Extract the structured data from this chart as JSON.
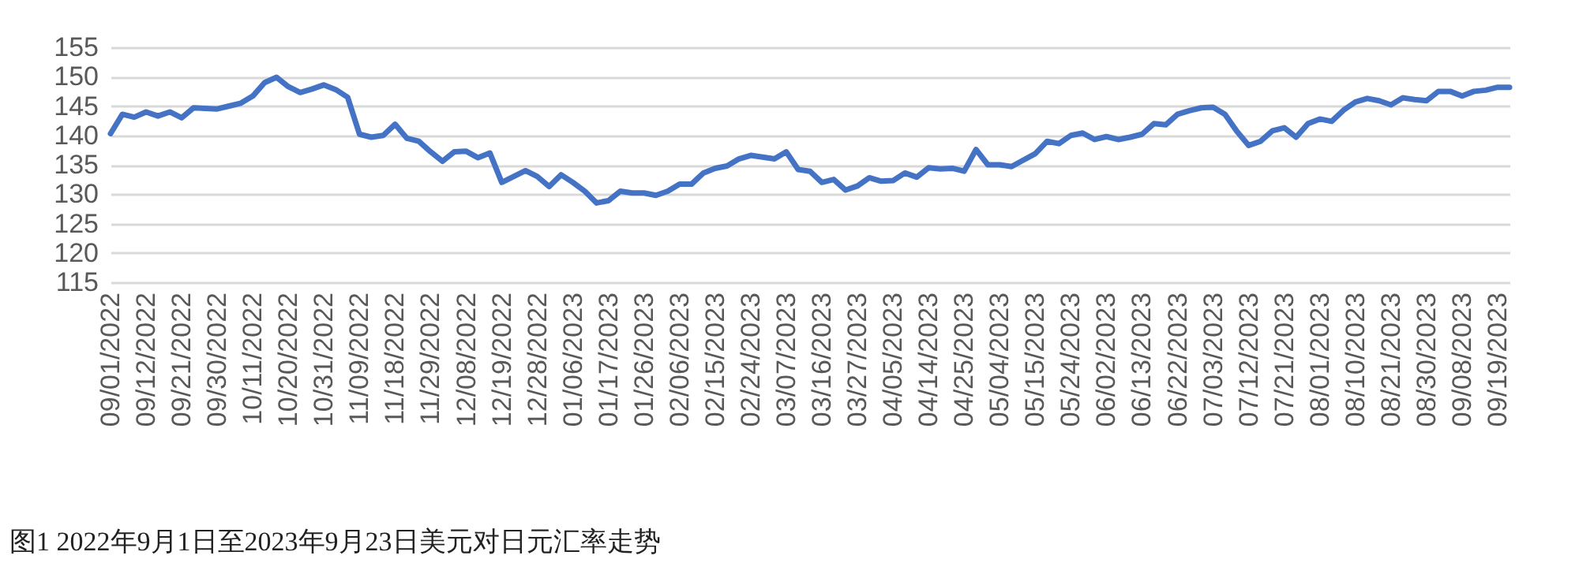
{
  "chart_data": {
    "type": "line",
    "categories": [
      "09/01/2022",
      null,
      null,
      "09/12/2022",
      null,
      null,
      "09/21/2022",
      null,
      null,
      "09/30/2022",
      null,
      null,
      "10/11/2022",
      null,
      null,
      "10/20/2022",
      null,
      null,
      "10/31/2022",
      null,
      null,
      "11/09/2022",
      null,
      null,
      "11/18/2022",
      null,
      null,
      "11/29/2022",
      null,
      null,
      "12/08/2022",
      null,
      null,
      "12/19/2022",
      null,
      null,
      "12/28/2022",
      null,
      null,
      "01/06/2023",
      null,
      null,
      "01/17/2023",
      null,
      null,
      "01/26/2023",
      null,
      null,
      "02/06/2023",
      null,
      null,
      "02/15/2023",
      null,
      null,
      "02/24/2023",
      null,
      null,
      "03/07/2023",
      null,
      null,
      "03/16/2023",
      null,
      null,
      "03/27/2023",
      null,
      null,
      "04/05/2023",
      null,
      null,
      "04/14/2023",
      null,
      null,
      "04/25/2023",
      null,
      null,
      "05/04/2023",
      null,
      null,
      "05/15/2023",
      null,
      null,
      "05/24/2023",
      null,
      null,
      "06/02/2023",
      null,
      null,
      "06/13/2023",
      null,
      null,
      "06/22/2023",
      null,
      null,
      "07/03/2023",
      null,
      null,
      "07/12/2023",
      null,
      null,
      "07/21/2023",
      null,
      null,
      "08/01/2023",
      null,
      null,
      "08/10/2023",
      null,
      null,
      "08/21/2023",
      null,
      null,
      "08/30/2023",
      null,
      null,
      "09/08/2023",
      null,
      null,
      "09/19/2023",
      null
    ],
    "series": [
      {
        "color": "#4472c4",
        "values": [
          140.3,
          143.6,
          143.1,
          144,
          143.3,
          144,
          143,
          144.7,
          144.6,
          144.5,
          145,
          145.5,
          146.7,
          149,
          149.9,
          148.3,
          147.3,
          147.9,
          148.6,
          147.8,
          146.5,
          140.2,
          139.7,
          140,
          141.9,
          139.5,
          139,
          137.2,
          135.6,
          137.2,
          137.3,
          136.2,
          137,
          132,
          133,
          134,
          133,
          131.3,
          133.3,
          132,
          130.5,
          128.5,
          128.9,
          130.5,
          130.2,
          130.2,
          129.8,
          130.5,
          131.7,
          131.7,
          133.6,
          134.4,
          134.8,
          136,
          136.6,
          136.3,
          136,
          137.2,
          134.2,
          133.9,
          132,
          132.5,
          130.7,
          131.4,
          132.8,
          132.2,
          132.3,
          133.6,
          132.9,
          134.5,
          134.3,
          134.4,
          133.9,
          137.6,
          135,
          135,
          134.7,
          135.8,
          136.9,
          139,
          138.6,
          140,
          140.4,
          139.3,
          139.8,
          139.3,
          139.7,
          140.2,
          142,
          141.8,
          143.6,
          144.2,
          144.7,
          144.8,
          143.6,
          140.7,
          138.3,
          139,
          140.8,
          141.3,
          139.7,
          142,
          142.8,
          142.4,
          144.3,
          145.7,
          146.3,
          145.9,
          145.2,
          146.4,
          146.1,
          145.9,
          147.5,
          147.5,
          146.7,
          147.5,
          147.7,
          148.2,
          148.2
        ]
      }
    ],
    "ylim": [
      115,
      155
    ],
    "yticks": [
      115,
      120,
      125,
      130,
      135,
      140,
      145,
      150,
      155
    ],
    "grid": "y",
    "annotations": [
      "图1 2022年9月1日至2023年9月23日美元对日元汇率走势"
    ]
  }
}
